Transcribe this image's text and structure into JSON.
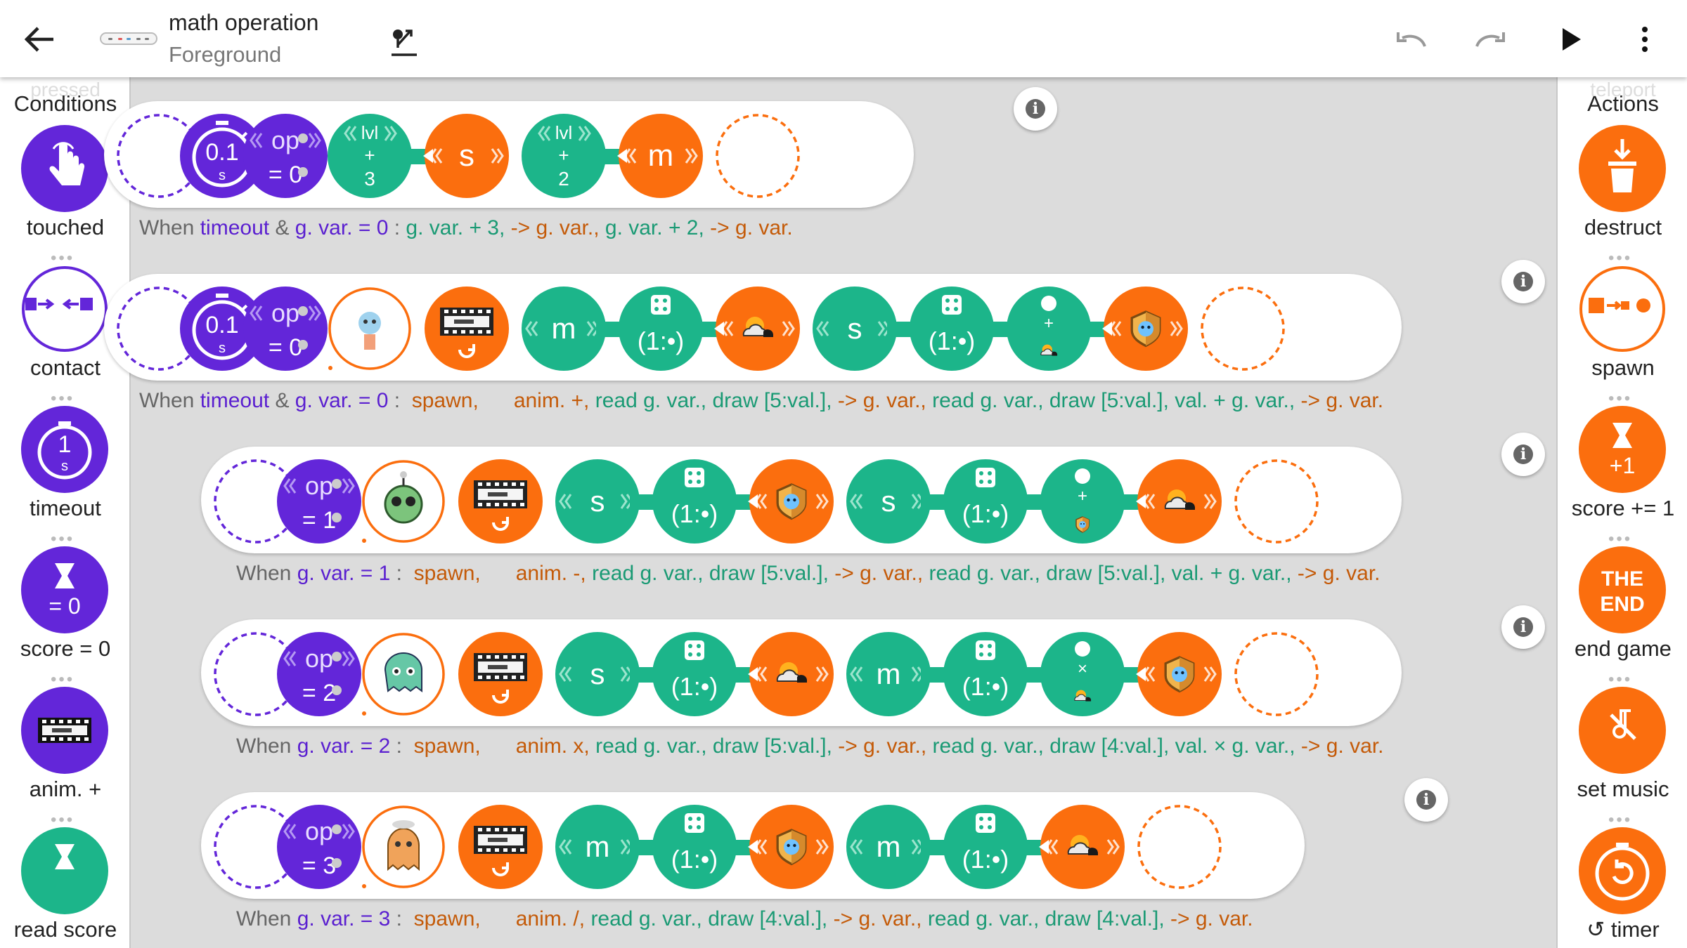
{
  "header": {
    "title": "math operation",
    "subtitle": "Foreground"
  },
  "colors": {
    "purple": "#6326d9",
    "green": "#1cb58a",
    "orange": "#fb6e0e",
    "dark_gray": "#666666"
  },
  "palettes": {
    "left": {
      "ghost": "pressed",
      "title": "Conditions",
      "items": [
        {
          "label": "touched",
          "icon": "touch-hand-icon"
        },
        {
          "label": "contact",
          "icon": "contact-arrows-icon"
        },
        {
          "label": "timeout",
          "icon": "stopwatch-icon",
          "value": "1",
          "unit": "s"
        },
        {
          "label": "score = 0",
          "icon": "hourglass-icon",
          "value": "= 0"
        },
        {
          "label": "anim. +",
          "icon": "film-strip-icon"
        },
        {
          "label": "read score",
          "icon": "hourglass-icon"
        }
      ]
    },
    "right": {
      "ghost": "teleport",
      "title": "Actions",
      "items": [
        {
          "label": "destruct",
          "icon": "trash-icon"
        },
        {
          "label": "spawn",
          "icon": "spawn-icon"
        },
        {
          "label": "score += 1",
          "icon": "hourglass-icon",
          "value": "+1"
        },
        {
          "label": "end game",
          "icon": "the-end-icon",
          "value": "THE END"
        },
        {
          "label": "set music",
          "icon": "music-off-icon"
        },
        {
          "label": "↺ timer",
          "icon": "timer-reset-icon"
        }
      ]
    }
  },
  "rules": [
    {
      "info": "i",
      "tokens": [
        {
          "type": "empty-purple"
        },
        {
          "type": "timer",
          "value": "0.1",
          "unit": "s"
        },
        {
          "type": "op",
          "label": "op",
          "value": "= 0"
        },
        {
          "type": "dots"
        },
        {
          "type": "lvl",
          "label": "lvl",
          "op": "+",
          "value": "3"
        },
        {
          "type": "var-orange",
          "label": "s"
        },
        {
          "type": "lvl",
          "label": "lvl",
          "op": "+",
          "value": "2"
        },
        {
          "type": "var-orange",
          "label": "m"
        },
        {
          "type": "empty-orange"
        }
      ],
      "desc": [
        [
          "When ",
          "d"
        ],
        [
          "timeout",
          "p"
        ],
        [
          " & ",
          "d"
        ],
        [
          "g. var. = 0",
          "p"
        ],
        [
          " : ",
          "d"
        ],
        [
          "g. var. + 3,",
          "g"
        ],
        [
          " -> g. var.,",
          "o"
        ],
        [
          " g. var. + 2,",
          "g"
        ],
        [
          " -> g. var.",
          "o"
        ]
      ]
    },
    {
      "info": "i",
      "tokens": [
        {
          "type": "empty-purple"
        },
        {
          "type": "timer",
          "value": "0.1",
          "unit": "s"
        },
        {
          "type": "op",
          "label": "op",
          "value": "= 0"
        },
        {
          "type": "dots"
        },
        {
          "type": "sprite",
          "sprite": "blue-creature"
        },
        {
          "type": "anim"
        },
        {
          "type": "var-green",
          "label": "m"
        },
        {
          "type": "dice",
          "label": "(1:•)"
        },
        {
          "type": "sky"
        },
        {
          "type": "var-green",
          "label": "s"
        },
        {
          "type": "dice",
          "label": "(1:•)"
        },
        {
          "type": "valop",
          "op": "+",
          "icon": "sky"
        },
        {
          "type": "shield"
        },
        {
          "type": "empty-orange"
        }
      ],
      "desc": [
        [
          "When ",
          "d"
        ],
        [
          "timeout",
          "p"
        ],
        [
          " & ",
          "d"
        ],
        [
          "g. var. = 0",
          "p"
        ],
        [
          " :  ",
          "d"
        ],
        [
          "spawn,      ",
          "o"
        ],
        [
          "anim. +,",
          "o"
        ],
        [
          " read g. var., draw [5:val.],",
          "g"
        ],
        [
          " -> g. var.,",
          "o"
        ],
        [
          " read g. var., draw [5:val.], val. + g. var.,",
          "g"
        ],
        [
          " -> g. var.",
          "o"
        ]
      ]
    },
    {
      "info": "i",
      "tokens": [
        {
          "type": "empty-purple"
        },
        {
          "type": "op",
          "label": "op",
          "value": "= 1"
        },
        {
          "type": "dots"
        },
        {
          "type": "sprite",
          "sprite": "green-alien"
        },
        {
          "type": "anim"
        },
        {
          "type": "var-green",
          "label": "s"
        },
        {
          "type": "dice",
          "label": "(1:•)"
        },
        {
          "type": "shield"
        },
        {
          "type": "var-green",
          "label": "s"
        },
        {
          "type": "dice",
          "label": "(1:•)"
        },
        {
          "type": "valop",
          "op": "+",
          "icon": "shield"
        },
        {
          "type": "sky"
        },
        {
          "type": "empty-orange"
        }
      ],
      "desc": [
        [
          "When ",
          "d"
        ],
        [
          "g. var. = 1",
          "p"
        ],
        [
          " :  ",
          "d"
        ],
        [
          "spawn,      ",
          "o"
        ],
        [
          "anim. -,",
          "o"
        ],
        [
          " read g. var., draw [5:val.],",
          "g"
        ],
        [
          " -> g. var.,",
          "o"
        ],
        [
          " read g. var., draw [5:val.], val. + g. var.,",
          "g"
        ],
        [
          " -> g. var.",
          "o"
        ]
      ]
    },
    {
      "info": "i",
      "tokens": [
        {
          "type": "empty-purple"
        },
        {
          "type": "op",
          "label": "op",
          "value": "= 2"
        },
        {
          "type": "dots"
        },
        {
          "type": "sprite",
          "sprite": "teal-monster"
        },
        {
          "type": "anim"
        },
        {
          "type": "var-green",
          "label": "s"
        },
        {
          "type": "dice",
          "label": "(1:•)"
        },
        {
          "type": "sky"
        },
        {
          "type": "var-green",
          "label": "m"
        },
        {
          "type": "dice",
          "label": "(1:•)"
        },
        {
          "type": "valop",
          "op": "×",
          "icon": "sky"
        },
        {
          "type": "shield"
        },
        {
          "type": "empty-orange"
        }
      ],
      "desc": [
        [
          "When ",
          "d"
        ],
        [
          "g. var. = 2",
          "p"
        ],
        [
          " :  ",
          "d"
        ],
        [
          "spawn,      ",
          "o"
        ],
        [
          "anim. x,",
          "o"
        ],
        [
          " read g. var., draw [5:val.],",
          "g"
        ],
        [
          " -> g. var.,",
          "o"
        ],
        [
          " read g. var., draw [4:val.], val. × g. var.,",
          "g"
        ],
        [
          " -> g. var.",
          "o"
        ]
      ]
    },
    {
      "info": "i",
      "tokens": [
        {
          "type": "empty-purple"
        },
        {
          "type": "op",
          "label": "op",
          "value": "= 3"
        },
        {
          "type": "dots"
        },
        {
          "type": "sprite",
          "sprite": "orange-ghost"
        },
        {
          "type": "anim"
        },
        {
          "type": "var-green",
          "label": "m"
        },
        {
          "type": "dice",
          "label": "(1:•)"
        },
        {
          "type": "shield"
        },
        {
          "type": "var-green",
          "label": "m"
        },
        {
          "type": "dice",
          "label": "(1:•)"
        },
        {
          "type": "sky"
        },
        {
          "type": "empty-orange"
        }
      ],
      "desc": [
        [
          "When ",
          "d"
        ],
        [
          "g. var. = 3",
          "p"
        ],
        [
          " :  ",
          "d"
        ],
        [
          "spawn,      ",
          "o"
        ],
        [
          "anim. /,",
          "o"
        ],
        [
          " read g. var., draw [4:val.],",
          "g"
        ],
        [
          " -> g. var.,",
          "o"
        ],
        [
          " read g. var., draw [4:val.],",
          "g"
        ],
        [
          " -> g. var.",
          "o"
        ]
      ]
    }
  ]
}
